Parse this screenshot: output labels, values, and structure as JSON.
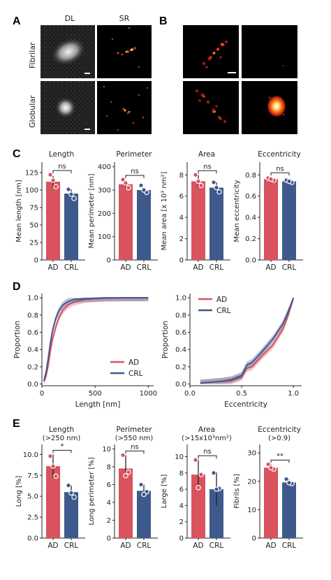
{
  "panel_labels": {
    "A": "A",
    "B": "B",
    "C": "C",
    "D": "D",
    "E": "E"
  },
  "microscopy": {
    "col_headers": [
      "DL",
      "SR"
    ],
    "row_labels": [
      "Fibrilar",
      "Globular"
    ]
  },
  "colors": {
    "AD": "#d9525e",
    "CRL": "#3e5a8c",
    "dot_AD": "#d9525e",
    "dot_CRL": "#3e5a8c"
  },
  "chart_data": [
    {
      "id": "c_length",
      "type": "bar",
      "title": "Length",
      "subtitle": "",
      "ylabel": "Mean length [nm]",
      "categories": [
        "AD",
        "CRL"
      ],
      "values": [
        112,
        95
      ],
      "ylim": [
        0,
        140
      ],
      "yticks": [
        0,
        25,
        50,
        75,
        100,
        125
      ],
      "points": [
        [
          122,
          105,
          114
        ],
        [
          101,
          88,
          94
        ]
      ],
      "errors": [
        [
          104,
          120
        ],
        [
          89,
          101
        ]
      ],
      "sig": "ns"
    },
    {
      "id": "c_perimeter",
      "type": "bar",
      "title": "Perimeter",
      "subtitle": "",
      "ylabel": "Mean perimeter [nm]",
      "categories": [
        "AD",
        "CRL"
      ],
      "values": [
        325,
        300
      ],
      "ylim": [
        0,
        420
      ],
      "yticks": [
        0,
        100,
        200,
        300,
        400
      ],
      "points": [
        [
          345,
          310,
          330
        ],
        [
          320,
          290,
          300
        ]
      ],
      "errors": [
        [
          308,
          342
        ],
        [
          290,
          312
        ]
      ],
      "sig": "ns"
    },
    {
      "id": "c_area",
      "type": "bar",
      "title": "Area",
      "subtitle": "",
      "ylabel": "Mean area [x 10³ nm²]",
      "categories": [
        "AD",
        "CRL"
      ],
      "values": [
        7.4,
        6.8
      ],
      "ylim": [
        0,
        9.2
      ],
      "yticks": [
        0,
        2,
        4,
        6,
        8
      ],
      "points": [
        [
          8.0,
          7.0,
          7.4
        ],
        [
          7.3,
          6.4,
          6.8
        ]
      ],
      "errors": [
        [
          6.9,
          8.0
        ],
        [
          6.4,
          7.3
        ]
      ],
      "sig": "ns"
    },
    {
      "id": "c_ecc",
      "type": "bar",
      "title": "Eccentricity",
      "subtitle": "",
      "ylabel": "Mean eccentricity",
      "categories": [
        "AD",
        "CRL"
      ],
      "values": [
        0.76,
        0.74
      ],
      "ylim": [
        0,
        0.92
      ],
      "yticks": [
        0.0,
        0.2,
        0.4,
        0.6,
        0.8
      ],
      "points": [
        [
          0.77,
          0.75,
          0.76
        ],
        [
          0.75,
          0.73,
          0.74
        ]
      ],
      "errors": [
        [
          0.74,
          0.78
        ],
        [
          0.72,
          0.76
        ]
      ],
      "sig": "ns"
    },
    {
      "id": "d_length",
      "type": "line",
      "title": "",
      "xlabel": "Length [nm]",
      "ylabel": "Proportion",
      "xlim": [
        0,
        1050
      ],
      "ylim": [
        -0.02,
        1.05
      ],
      "xticks": [
        0,
        500,
        1000
      ],
      "yticks": [
        0.0,
        0.2,
        0.4,
        0.6,
        0.8,
        1.0
      ],
      "legend": "bottom-right",
      "series": [
        {
          "name": "AD",
          "x": [
            20,
            40,
            60,
            80,
            100,
            130,
            160,
            200,
            250,
            300,
            400,
            500,
            600,
            800,
            1000
          ],
          "y": [
            0.03,
            0.1,
            0.22,
            0.38,
            0.52,
            0.66,
            0.77,
            0.86,
            0.92,
            0.95,
            0.98,
            0.99,
            0.995,
            1.0,
            1.0
          ]
        },
        {
          "name": "CRL",
          "x": [
            20,
            40,
            60,
            80,
            100,
            130,
            160,
            200,
            250,
            300,
            400,
            500,
            600,
            800,
            1000
          ],
          "y": [
            0.04,
            0.14,
            0.3,
            0.48,
            0.62,
            0.76,
            0.85,
            0.92,
            0.96,
            0.98,
            0.99,
            0.995,
            1.0,
            1.0,
            1.0
          ]
        }
      ]
    },
    {
      "id": "d_ecc",
      "type": "line",
      "title": "",
      "xlabel": "Eccentricity",
      "ylabel": "Proportion",
      "xlim": [
        0.0,
        1.08
      ],
      "ylim": [
        -0.02,
        1.05
      ],
      "xticks": [
        0.0,
        0.5,
        1.0
      ],
      "yticks": [
        0.0,
        0.2,
        0.4,
        0.6,
        0.8,
        1.0
      ],
      "legend": "top-right",
      "series": [
        {
          "name": "AD",
          "x": [
            0.1,
            0.2,
            0.3,
            0.4,
            0.5,
            0.55,
            0.6,
            0.7,
            0.8,
            0.9,
            0.95,
            1.0
          ],
          "y": [
            0.01,
            0.02,
            0.03,
            0.04,
            0.08,
            0.18,
            0.2,
            0.33,
            0.45,
            0.64,
            0.8,
            1.0
          ]
        },
        {
          "name": "CRL",
          "x": [
            0.1,
            0.2,
            0.3,
            0.4,
            0.5,
            0.55,
            0.6,
            0.7,
            0.8,
            0.9,
            0.95,
            1.0
          ],
          "y": [
            0.01,
            0.02,
            0.03,
            0.05,
            0.1,
            0.22,
            0.25,
            0.38,
            0.52,
            0.7,
            0.84,
            1.0
          ]
        }
      ]
    },
    {
      "id": "e_length",
      "type": "bar",
      "title": "Length",
      "subtitle": "(>250 nm)",
      "ylabel": "Long [%]",
      "categories": [
        "AD",
        "CRL"
      ],
      "values": [
        8.6,
        5.5
      ],
      "ylim": [
        0,
        11.2
      ],
      "yticks": [
        0.0,
        2.5,
        5.0,
        7.5,
        10.0
      ],
      "points": [
        [
          9.8,
          7.4,
          8.6
        ],
        [
          6.3,
          4.9,
          5.4
        ]
      ],
      "errors": [
        [
          7.2,
          10.0
        ],
        [
          4.8,
          6.3
        ]
      ],
      "sig": "*"
    },
    {
      "id": "e_perimeter",
      "type": "bar",
      "title": "Perimeter",
      "subtitle": "(>550 nm)",
      "ylabel": "Long perimeter [%]",
      "categories": [
        "AD",
        "CRL"
      ],
      "values": [
        7.8,
        5.3
      ],
      "ylim": [
        0,
        10.5
      ],
      "yticks": [
        0,
        2,
        4,
        6,
        8,
        10
      ],
      "points": [
        [
          9.3,
          7.4,
          7.0
        ],
        [
          6.0,
          5.2,
          4.9
        ]
      ],
      "errors": [
        [
          6.9,
          9.3
        ],
        [
          4.8,
          6.0
        ]
      ],
      "sig": "ns"
    },
    {
      "id": "e_area",
      "type": "bar",
      "title": "Area",
      "subtitle": "(>15x10³nm²)",
      "ylabel": "Large [%]",
      "categories": [
        "AD",
        "CRL"
      ],
      "values": [
        7.8,
        6.0
      ],
      "ylim": [
        0,
        11.5
      ],
      "yticks": [
        0,
        2,
        4,
        6,
        8,
        10
      ],
      "points": [
        [
          9.6,
          7.8,
          6.2
        ],
        [
          8.0,
          6.1,
          6.0
        ]
      ],
      "errors": [
        [
          6.1,
          9.6
        ],
        [
          4.0,
          8.1
        ]
      ],
      "sig": "ns"
    },
    {
      "id": "e_ecc",
      "type": "bar",
      "title": "Eccentricity",
      "subtitle": "(>0.9)",
      "ylabel": "Fibrils [%]",
      "categories": [
        "AD",
        "CRL"
      ],
      "values": [
        24.8,
        19.6
      ],
      "ylim": [
        0,
        33
      ],
      "yticks": [
        0,
        10,
        20,
        30
      ],
      "points": [
        [
          26.0,
          24.3,
          24.8
        ],
        [
          20.8,
          19.2,
          19.5
        ]
      ],
      "errors": [
        [
          23.8,
          26.0
        ],
        [
          18.6,
          20.6
        ]
      ],
      "sig": "**"
    }
  ]
}
